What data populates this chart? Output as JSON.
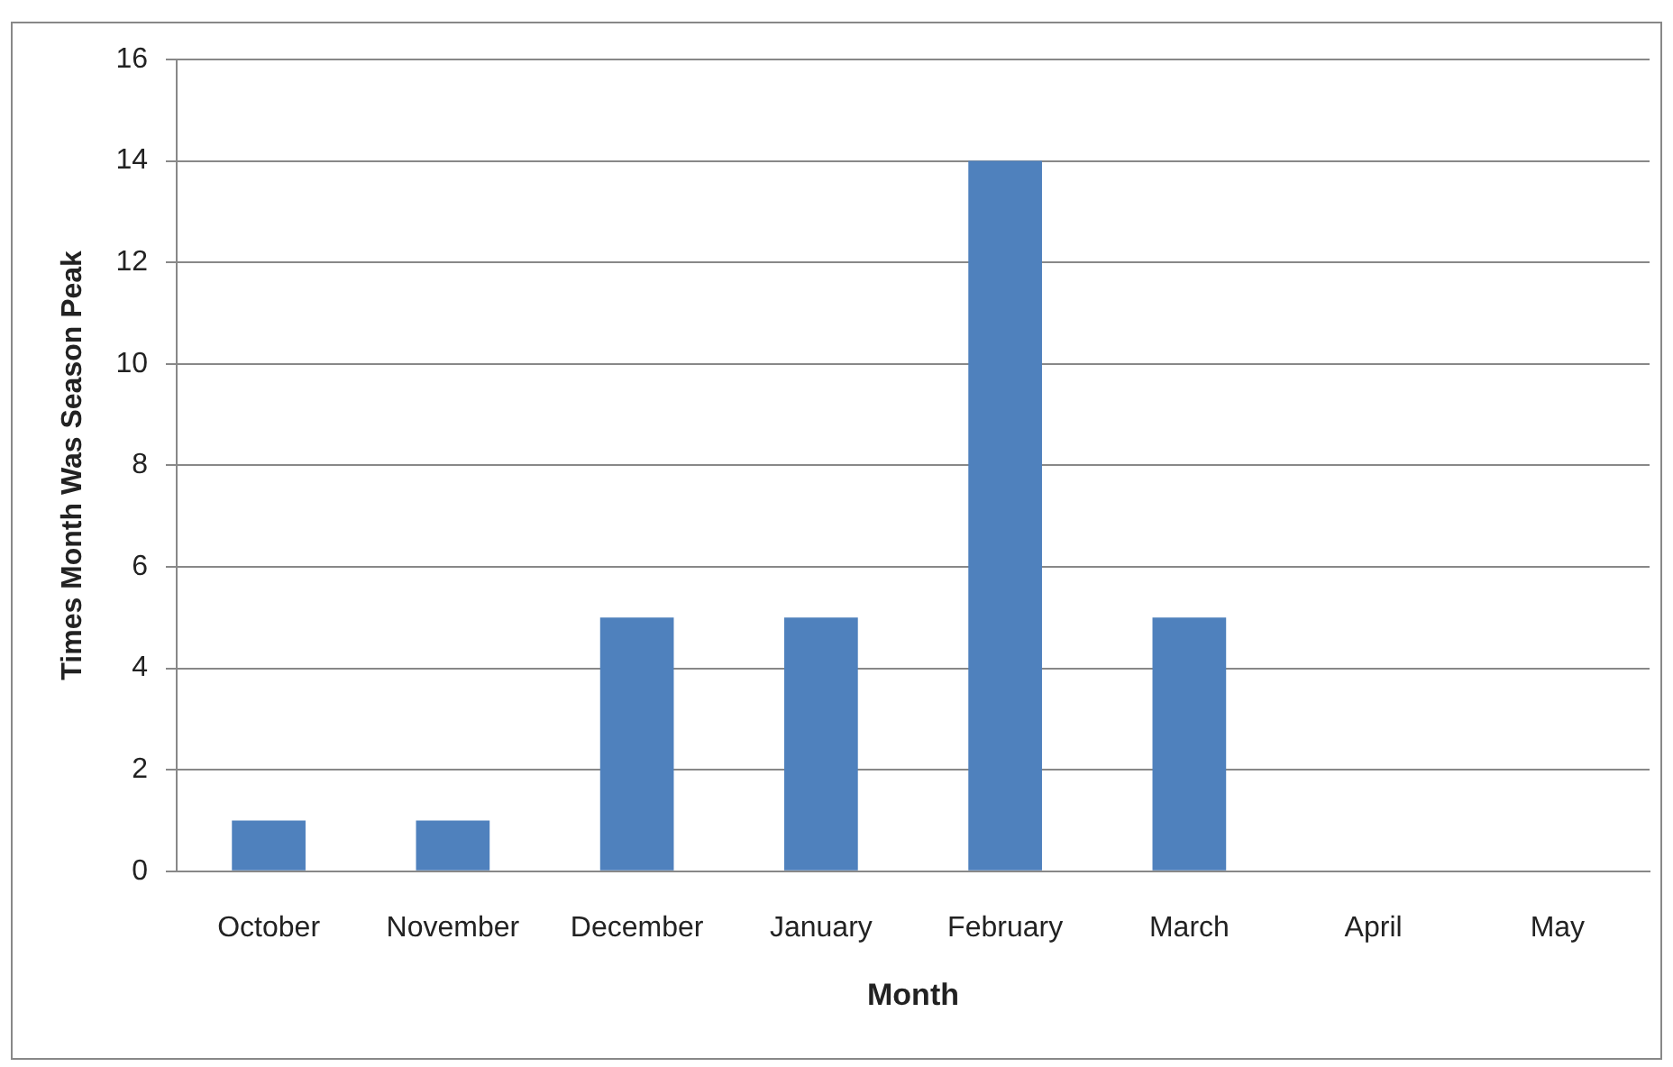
{
  "chart_data": {
    "type": "bar",
    "xlabel": "Month",
    "ylabel": "Times Month Was Season Peak",
    "categories": [
      "October",
      "November",
      "December",
      "January",
      "February",
      "March",
      "April",
      "May"
    ],
    "values": [
      1,
      1,
      5,
      5,
      14,
      5,
      0,
      0
    ],
    "color": "#4f81bd",
    "ylim": [
      0,
      16
    ],
    "yticks": [
      0,
      2,
      4,
      6,
      8,
      10,
      12,
      14,
      16
    ],
    "grid": "y",
    "legend": false
  }
}
